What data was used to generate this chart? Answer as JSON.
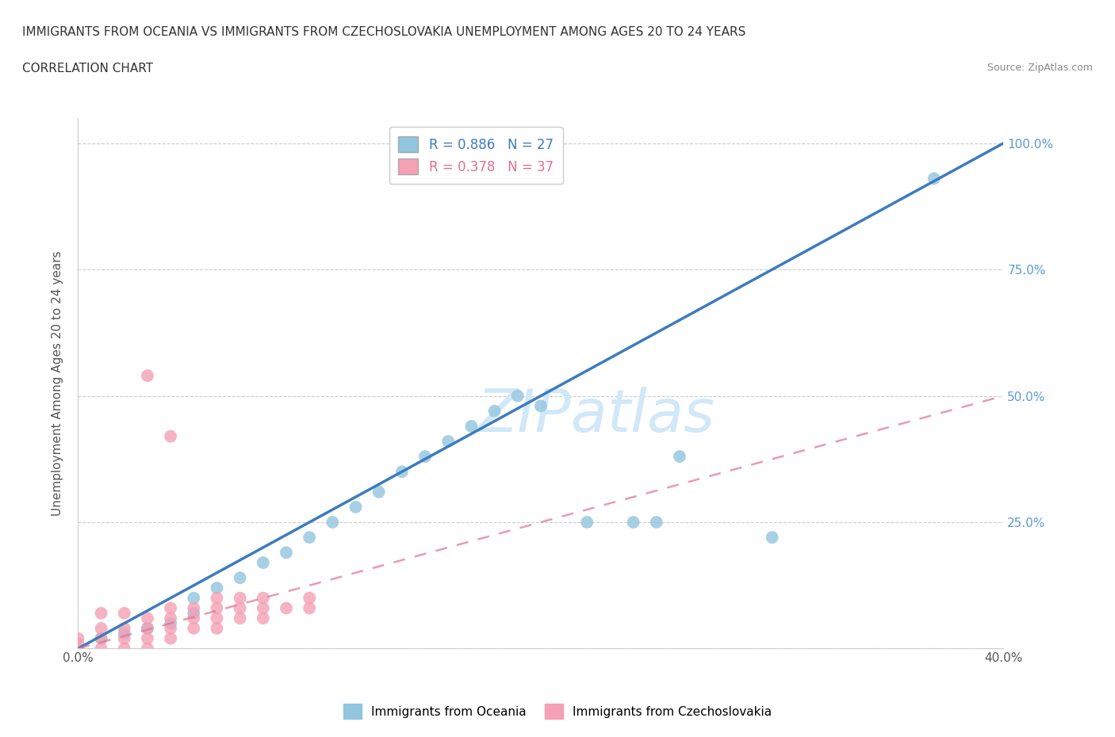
{
  "title_line1": "IMMIGRANTS FROM OCEANIA VS IMMIGRANTS FROM CZECHOSLOVAKIA UNEMPLOYMENT AMONG AGES 20 TO 24 YEARS",
  "title_line2": "CORRELATION CHART",
  "source_text": "Source: ZipAtlas.com",
  "ylabel": "Unemployment Among Ages 20 to 24 years",
  "xmin": 0.0,
  "xmax": 0.4,
  "ymin": 0.0,
  "ymax": 1.05,
  "blue_color": "#92c5de",
  "pink_color": "#f4a0b5",
  "blue_line_color": "#3d7bbf",
  "pink_line_color": "#e07090",
  "blue_R": 0.886,
  "blue_N": 27,
  "pink_R": 0.378,
  "pink_N": 37,
  "blue_scatter_x": [
    0.01,
    0.02,
    0.03,
    0.04,
    0.05,
    0.05,
    0.06,
    0.07,
    0.08,
    0.09,
    0.1,
    0.11,
    0.12,
    0.13,
    0.14,
    0.15,
    0.16,
    0.17,
    0.18,
    0.19,
    0.2,
    0.22,
    0.24,
    0.25,
    0.26,
    0.3,
    0.37
  ],
  "blue_scatter_y": [
    0.02,
    0.03,
    0.04,
    0.05,
    0.07,
    0.1,
    0.12,
    0.14,
    0.17,
    0.19,
    0.22,
    0.25,
    0.28,
    0.31,
    0.35,
    0.38,
    0.41,
    0.44,
    0.47,
    0.5,
    0.48,
    0.25,
    0.25,
    0.25,
    0.38,
    0.22,
    0.93
  ],
  "pink_scatter_x": [
    0.0,
    0.0,
    0.0,
    0.01,
    0.01,
    0.01,
    0.01,
    0.02,
    0.02,
    0.02,
    0.02,
    0.03,
    0.03,
    0.03,
    0.03,
    0.04,
    0.04,
    0.04,
    0.04,
    0.05,
    0.05,
    0.05,
    0.06,
    0.06,
    0.06,
    0.06,
    0.07,
    0.07,
    0.07,
    0.08,
    0.08,
    0.08,
    0.09,
    0.1,
    0.1,
    0.03,
    0.04
  ],
  "pink_scatter_y": [
    0.0,
    0.01,
    0.02,
    0.0,
    0.02,
    0.04,
    0.07,
    0.0,
    0.02,
    0.04,
    0.07,
    0.0,
    0.02,
    0.04,
    0.06,
    0.02,
    0.04,
    0.06,
    0.08,
    0.04,
    0.06,
    0.08,
    0.04,
    0.06,
    0.08,
    0.1,
    0.06,
    0.08,
    0.1,
    0.06,
    0.08,
    0.1,
    0.08,
    0.08,
    0.1,
    0.54,
    0.42
  ],
  "blue_trendline_x": [
    0.0,
    0.4
  ],
  "blue_trendline_y": [
    0.0,
    1.0
  ],
  "pink_trendline_x": [
    0.0,
    0.4
  ],
  "pink_trendline_y": [
    0.0,
    0.5
  ],
  "watermark_text": "ZIPatlas",
  "legend_label_blue": "Immigrants from Oceania",
  "legend_label_pink": "Immigrants from Czechoslovakia",
  "background_color": "#ffffff",
  "grid_color": "#cccccc",
  "title_color": "#333333",
  "axis_label_color": "#555555",
  "right_tick_color": "#5b9bd5",
  "watermark_color": "#d0e8f8"
}
